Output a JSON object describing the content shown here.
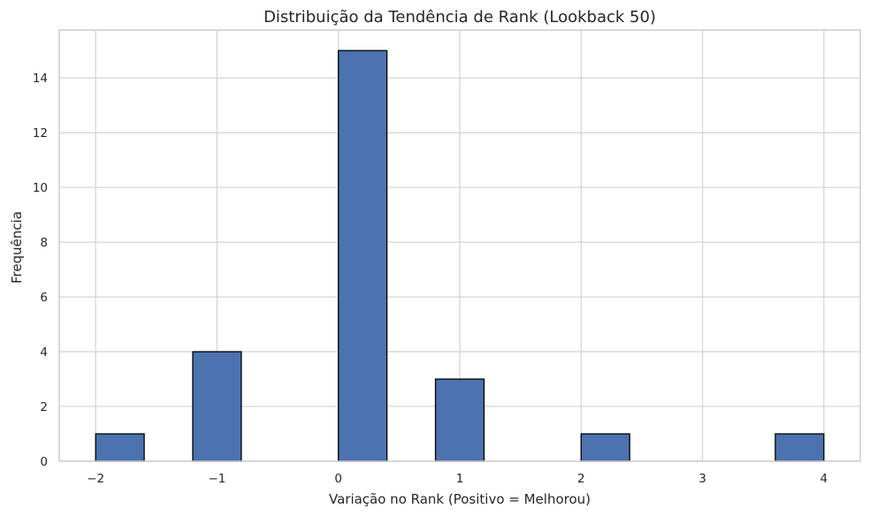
{
  "chart_data": {
    "type": "bar",
    "title": "Distribuição da Tendência de Rank (Lookback 50)",
    "xlabel": "Variação no Rank (Positivo = Melhorou)",
    "ylabel": "Frequência",
    "xlim": [
      -2.3,
      4.3
    ],
    "ylim": [
      0,
      15.75
    ],
    "xticks": [
      -2,
      -1,
      0,
      1,
      2,
      3,
      4
    ],
    "xtick_labels": [
      "−2",
      "−1",
      "0",
      "1",
      "2",
      "3",
      "4"
    ],
    "yticks": [
      0,
      2,
      4,
      6,
      8,
      10,
      12,
      14
    ],
    "yticks_labels": [
      "0",
      "2",
      "4",
      "6",
      "8",
      "10",
      "12",
      "14"
    ],
    "bins": [
      {
        "x0": -2.0,
        "x1": -1.6,
        "count": 1
      },
      {
        "x0": -1.6,
        "x1": -1.2,
        "count": 0
      },
      {
        "x0": -1.2,
        "x1": -0.8,
        "count": 4
      },
      {
        "x0": -0.8,
        "x1": -0.4,
        "count": 0
      },
      {
        "x0": -0.4,
        "x1": 0.0,
        "count": 0
      },
      {
        "x0": 0.0,
        "x1": 0.4,
        "count": 15
      },
      {
        "x0": 0.4,
        "x1": 0.8,
        "count": 0
      },
      {
        "x0": 0.8,
        "x1": 1.2,
        "count": 3
      },
      {
        "x0": 1.2,
        "x1": 1.6,
        "count": 0
      },
      {
        "x0": 1.6,
        "x1": 2.0,
        "count": 0
      },
      {
        "x0": 2.0,
        "x1": 2.4,
        "count": 1
      },
      {
        "x0": 2.4,
        "x1": 2.8,
        "count": 0
      },
      {
        "x0": 2.8,
        "x1": 3.2,
        "count": 0
      },
      {
        "x0": 3.2,
        "x1": 3.6,
        "count": 0
      },
      {
        "x0": 3.6,
        "x1": 4.0,
        "count": 1
      }
    ],
    "bar_color": "#4c72b0",
    "edge_color": "#000000",
    "grid": true,
    "legend": "none"
  }
}
